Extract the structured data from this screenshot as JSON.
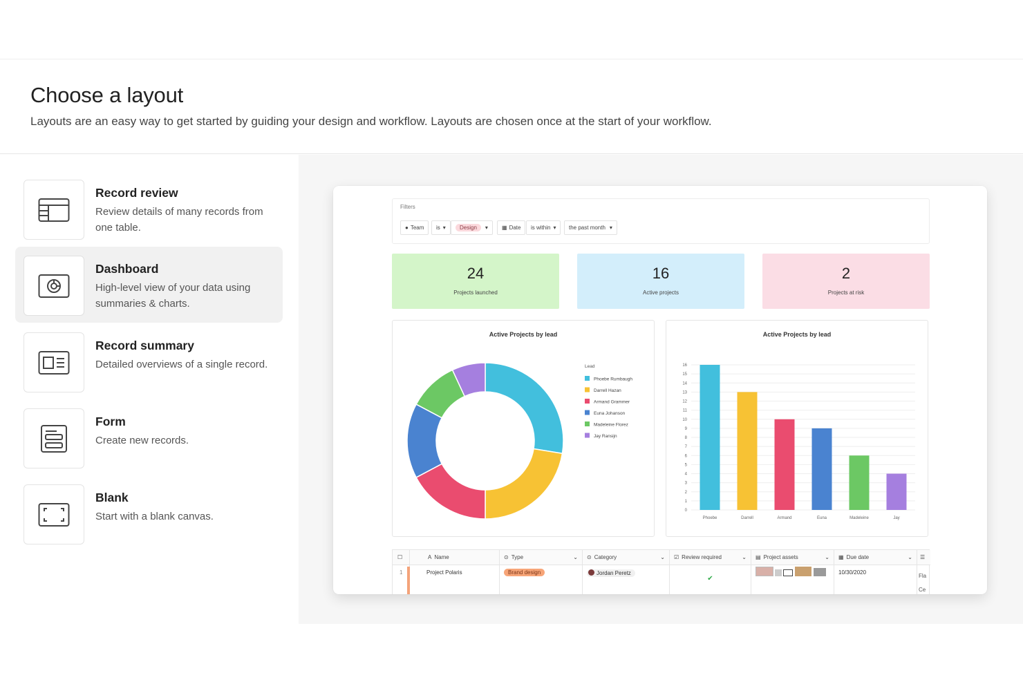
{
  "header": {
    "title": "Choose a layout",
    "subtitle": "Layouts are an easy way to get started by guiding your design and workflow. Layouts are chosen once at the start of your workflow."
  },
  "layouts": [
    {
      "title": "Record review",
      "description": "Review details of many records from one table.",
      "icon": "table-layout-icon",
      "selected": false
    },
    {
      "title": "Dashboard",
      "description": "High-level view of your data using summaries & charts.",
      "icon": "dashboard-icon",
      "selected": true
    },
    {
      "title": "Record summary",
      "description": "Detailed overviews of a single record.",
      "icon": "record-summary-icon",
      "selected": false
    },
    {
      "title": "Form",
      "description": "Create new records.",
      "icon": "form-icon",
      "selected": false
    },
    {
      "title": "Blank",
      "description": "Start with a blank canvas.",
      "icon": "blank-canvas-icon",
      "selected": false
    }
  ],
  "preview": {
    "filters": {
      "label": "Filters",
      "chips": [
        "Team",
        "is",
        "Design",
        "Date",
        "is within",
        "the past month"
      ]
    },
    "stats": [
      {
        "value": "24",
        "label": "Projects launched",
        "color": "#d4f5c9"
      },
      {
        "value": "16",
        "label": "Active projects",
        "color": "#d3eefb"
      },
      {
        "value": "2",
        "label": "Projects at risk",
        "color": "#fbdde5"
      }
    ],
    "table": {
      "headers": [
        "Name",
        "Type",
        "Category",
        "Review required",
        "Project assets",
        "Due date"
      ],
      "row": {
        "index": "1",
        "name": "Project Polaris",
        "type": "Brand design",
        "category": "Jordan Peretz",
        "review": "✔",
        "due": "10/30/2020",
        "extra1": "Fla",
        "extra2": "Ce"
      }
    }
  },
  "chart_data": [
    {
      "type": "pie",
      "title": "Active Projects by lead",
      "legend_title": "Lead",
      "legend_placement": "right",
      "donut": true,
      "categories": [
        "Phoebe Rumbaugh",
        "Darrell Hazan",
        "Armand Grammer",
        "Euna Johanson",
        "Madeleine Florez",
        "Jay Ransijn"
      ],
      "values": [
        16,
        13,
        10,
        9,
        6,
        4
      ],
      "colors": [
        "#42bfdd",
        "#f7c234",
        "#ea4c6f",
        "#4a83d0",
        "#6cc864",
        "#a57fdf"
      ]
    },
    {
      "type": "bar",
      "title": "Active Projects by lead",
      "categories": [
        "Phoebe",
        "Darrell",
        "Armand",
        "Euna",
        "Madeleine",
        "Jay"
      ],
      "values": [
        16,
        13,
        10,
        9,
        6,
        4
      ],
      "colors": [
        "#42bfdd",
        "#f7c234",
        "#ea4c6f",
        "#4a83d0",
        "#6cc864",
        "#a57fdf"
      ],
      "ylim": [
        0,
        16
      ],
      "yticks": [
        "0",
        "1",
        "2",
        "3",
        "4",
        "5",
        "6",
        "7",
        "8",
        "9",
        "10",
        "11",
        "12",
        "13",
        "14",
        "15",
        "16"
      ],
      "grid": true
    }
  ]
}
